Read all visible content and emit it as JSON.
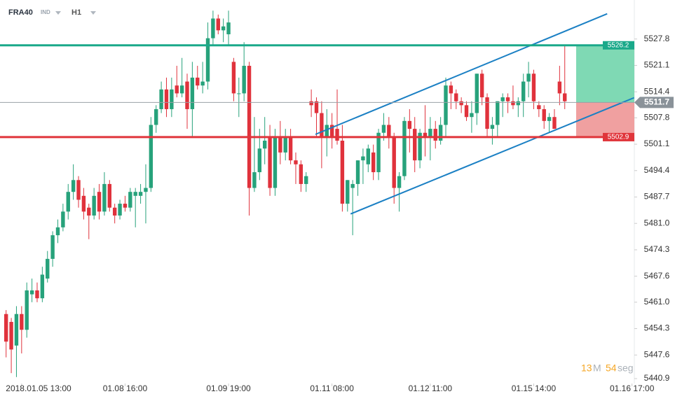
{
  "symbol": "FRA40",
  "market": "IND",
  "timeframe": "H1",
  "countdown": {
    "minutes": "13",
    "minutes_unit": "M",
    "seconds": "54",
    "seconds_unit": "seg"
  },
  "chart_data": {
    "type": "candlestick",
    "categories": [
      null,
      null,
      null,
      "2018.01.05 13:00",
      null,
      null,
      null,
      null,
      null,
      null,
      null,
      null,
      null,
      null,
      null,
      null,
      null,
      null,
      null,
      null,
      null,
      null,
      null,
      "01.08 16:00",
      null,
      null,
      null,
      null,
      null,
      null,
      null,
      null,
      null,
      null,
      null,
      null,
      null,
      null,
      null,
      null,
      null,
      null,
      null,
      "01.09 19:00",
      null,
      null,
      null,
      null,
      null,
      null,
      null,
      null,
      null,
      null,
      null,
      null,
      null,
      null,
      null,
      null,
      null,
      null,
      null,
      "01.11 08:00",
      null,
      null,
      null,
      null,
      null,
      null,
      null,
      null,
      null,
      null,
      null,
      null,
      null,
      null,
      null,
      null,
      null,
      null,
      "01.12 11:00",
      null,
      null,
      null,
      null,
      null,
      null,
      null,
      null,
      null,
      null,
      null,
      null,
      null,
      null,
      null,
      null,
      null,
      null,
      null,
      "01.15 14:00",
      null,
      null,
      null,
      null,
      null,
      null,
      null,
      null,
      null,
      null,
      null,
      null,
      null,
      null,
      null,
      null,
      null,
      null,
      "01.16 17:00"
    ],
    "open": [
      5458,
      5456,
      5450,
      5458,
      5454,
      5463,
      5464,
      5462,
      5467,
      5472,
      5478,
      5480,
      5484,
      5489,
      5492,
      5488,
      5485,
      5483,
      5489,
      5484,
      5491,
      5485,
      5483,
      5486,
      5485,
      5488,
      5488,
      5489,
      5490,
      5506,
      5510,
      5515,
      5510,
      5516,
      5514,
      5517,
      5510,
      5518,
      5516,
      5517,
      5528,
      5533,
      5530,
      5529,
      5522,
      5514,
      5514,
      5521,
      5490,
      5494,
      5500,
      5503,
      5490,
      5503,
      5499,
      5503,
      5497,
      5496,
      5491,
      5512,
      5512,
      5509,
      5503,
      5506,
      5505,
      5502,
      5486,
      5490,
      5491,
      5497,
      5496,
      5499,
      5494,
      5504,
      5506,
      5503,
      5490,
      5493,
      5507,
      5505,
      5497,
      5504,
      5503,
      5505,
      5502,
      5506,
      5516,
      5514,
      5512,
      5511,
      5508,
      5509,
      5519,
      5513,
      5505,
      5506,
      5512,
      5513,
      5512,
      5511,
      5512,
      5517,
      5519,
      5511,
      5510,
      5507,
      5508,
      5517,
      5514,
      null,
      null,
      null,
      null,
      null,
      null,
      null,
      null,
      null,
      null,
      null,
      null,
      null
    ],
    "high": [
      5459,
      5457,
      5460,
      5460,
      5466,
      5467,
      5466,
      5470,
      5474,
      5479,
      5482,
      5486,
      5491,
      5496,
      5493,
      5490,
      5486,
      5490,
      5491,
      5494,
      5492,
      5486,
      5487,
      5488,
      5490,
      5490,
      5491,
      5496,
      5508,
      5511,
      5517,
      5518,
      5518,
      5521,
      5523,
      5519,
      5522,
      5521,
      5522,
      5532,
      5535,
      5534,
      5533,
      5535,
      5523,
      5518,
      5527,
      5522,
      5508,
      5505,
      5508,
      5506,
      5505,
      5507,
      5505,
      5505,
      5499,
      5497,
      5494,
      5515,
      5513,
      5512,
      5510,
      5509,
      5515,
      5506,
      5492,
      5492,
      5497,
      5500,
      5501,
      5501,
      5505,
      5509,
      5508,
      5504,
      5494,
      5508,
      5510,
      5508,
      5505,
      5511,
      5508,
      5507,
      5508,
      5518,
      5517,
      5515,
      5513,
      5512,
      5512,
      5519,
      5520,
      5514,
      5508,
      5512,
      5514,
      5514,
      5516,
      5513,
      5519,
      5522,
      5520,
      5512,
      5511,
      5509,
      5510,
      5521,
      5526,
      null,
      null,
      null,
      null,
      null,
      null,
      null,
      null,
      null,
      null,
      null,
      null,
      null
    ],
    "low": [
      5447,
      5443,
      5442,
      5448,
      5452,
      5461,
      5461,
      5461,
      5466,
      5470,
      5476,
      5479,
      5482,
      5487,
      5485,
      5482,
      5477,
      5482,
      5482,
      5483,
      5484,
      5481,
      5482,
      5484,
      5484,
      5480,
      5486,
      5481,
      5489,
      5504,
      5509,
      5508,
      5508,
      5513,
      5513,
      5505,
      5503,
      5515,
      5514,
      5515,
      5526,
      5529,
      5527,
      5526,
      5512,
      5508,
      5512,
      5483,
      5489,
      5492,
      5496,
      5488,
      5488,
      5496,
      5497,
      5496,
      5491,
      5489,
      5489,
      5508,
      5503,
      5495,
      5498,
      5500,
      5501,
      5484,
      5484,
      5478,
      5488,
      5491,
      5494,
      5492,
      5492,
      5502,
      5500,
      5486,
      5484,
      5492,
      5499,
      5494,
      5495,
      5498,
      5497,
      5500,
      5501,
      5503,
      5510,
      5510,
      5509,
      5507,
      5504,
      5506,
      5511,
      5503,
      5501,
      5503,
      5508,
      5509,
      5510,
      5508,
      5508,
      5513,
      5510,
      5508,
      5505,
      5504,
      5505,
      5511,
      5510,
      null,
      null,
      null,
      null,
      null,
      null,
      null,
      null,
      null,
      null,
      null,
      null,
      null
    ],
    "close": [
      5451,
      5449,
      5458,
      5454,
      5464,
      5464,
      5462,
      5468,
      5472,
      5478,
      5480,
      5484,
      5489,
      5492,
      5487,
      5484,
      5483,
      5488,
      5484,
      5491,
      5485,
      5483,
      5486,
      5485,
      5489,
      5489,
      5489,
      5490,
      5506,
      5510,
      5515,
      5510,
      5515,
      5514,
      5516,
      5510,
      5518,
      5516,
      5517,
      5528,
      5533,
      5530,
      5531,
      5532,
      5514,
      5514,
      5521,
      5490,
      5494,
      5500,
      5502,
      5490,
      5503,
      5499,
      5503,
      5497,
      5496,
      5491,
      5493,
      5511,
      5509,
      5503,
      5506,
      5503,
      5502,
      5486,
      5492,
      5491,
      5497,
      5498,
      5500,
      5494,
      5504,
      5506,
      5503,
      5490,
      5493,
      5507,
      5505,
      5497,
      5504,
      5503,
      5505,
      5502,
      5506,
      5516,
      5514,
      5512,
      5511,
      5508,
      5509,
      5519,
      5513,
      5505,
      5506,
      5512,
      5513,
      5512,
      5511,
      5512,
      5517,
      5519,
      5512,
      5510,
      5507,
      5508,
      5505,
      5514,
      5512,
      null,
      null,
      null,
      null,
      null,
      null,
      null,
      null,
      null,
      null,
      null,
      null,
      null
    ],
    "up_color": "#27a27b",
    "down_color": "#e0323c",
    "ylim": [
      5440.9,
      5537.7
    ],
    "yticks": [
      5527.8,
      5521.1,
      5514.4,
      5507.8,
      5501.1,
      5494.4,
      5487.7,
      {
        "value": 5481,
        "label": "5481.0"
      },
      5474.3,
      5467.6,
      {
        "value": 5461,
        "label": "5461.0"
      },
      5454.3,
      5447.6,
      5440.9
    ],
    "levels": [
      {
        "value": 5526.2,
        "color": "#1aa98a"
      },
      {
        "value": 5502.9,
        "color": "#e0353b"
      }
    ],
    "last_price": 5511.7,
    "trendlines": [
      {
        "color": "#1b80c4",
        "points": [
          [
            59.8,
            5503.6
          ],
          [
            116.2,
            5534.2
          ]
        ]
      },
      {
        "color": "#1b80c4",
        "points": [
          [
            66.6,
            5483.4
          ],
          [
            121.4,
            5512.9
          ]
        ]
      }
    ]
  }
}
